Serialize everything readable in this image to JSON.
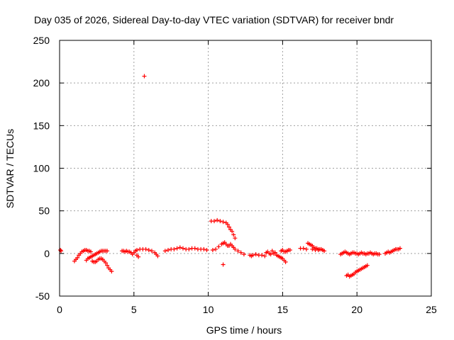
{
  "colors": {
    "series": "#ff0000",
    "grid": "#a0a0a0",
    "frame": "#000000",
    "background": "#ffffff"
  },
  "chart_data": {
    "type": "scatter",
    "title": "Day 035 of 2026, Sidereal Day-to-day VTEC variation (SDTVAR) for receiver bndr",
    "xlabel": "GPS time / hours",
    "ylabel": "SDTVAR / TECUs",
    "xlim": [
      0,
      25
    ],
    "ylim": [
      -50,
      250
    ],
    "xticks": [
      0,
      5,
      10,
      15,
      20,
      25
    ],
    "yticks": [
      -50,
      0,
      50,
      100,
      150,
      200,
      250
    ],
    "grid": true,
    "marker": "plus",
    "series": [
      {
        "name": "SDTVAR",
        "points": [
          [
            0.05,
            4
          ],
          [
            0.1,
            3
          ],
          [
            1.0,
            -9
          ],
          [
            1.1,
            -7
          ],
          [
            1.2,
            -5
          ],
          [
            1.3,
            -2
          ],
          [
            1.4,
            0
          ],
          [
            1.5,
            2
          ],
          [
            1.6,
            3
          ],
          [
            1.7,
            4
          ],
          [
            1.8,
            4
          ],
          [
            1.9,
            3
          ],
          [
            2.0,
            3
          ],
          [
            2.1,
            2
          ],
          [
            1.8,
            -8
          ],
          [
            1.9,
            -6
          ],
          [
            2.0,
            -5
          ],
          [
            2.1,
            -4
          ],
          [
            2.2,
            -3
          ],
          [
            2.3,
            -2
          ],
          [
            2.4,
            -1
          ],
          [
            2.5,
            0
          ],
          [
            2.6,
            1
          ],
          [
            2.7,
            2
          ],
          [
            2.8,
            3
          ],
          [
            2.9,
            3
          ],
          [
            3.0,
            3
          ],
          [
            3.1,
            3
          ],
          [
            3.2,
            3
          ],
          [
            2.2,
            -9
          ],
          [
            2.3,
            -10
          ],
          [
            2.4,
            -10
          ],
          [
            2.5,
            -9
          ],
          [
            2.6,
            -7
          ],
          [
            2.7,
            -6
          ],
          [
            2.8,
            -6
          ],
          [
            2.9,
            -7
          ],
          [
            3.0,
            -9
          ],
          [
            3.1,
            -11
          ],
          [
            3.2,
            -14
          ],
          [
            3.3,
            -17
          ],
          [
            3.4,
            -19
          ],
          [
            3.5,
            -21
          ],
          [
            4.2,
            3
          ],
          [
            4.3,
            3
          ],
          [
            4.4,
            2
          ],
          [
            4.5,
            3
          ],
          [
            4.6,
            2
          ],
          [
            4.7,
            2
          ],
          [
            4.8,
            1
          ],
          [
            4.9,
            -1
          ],
          [
            5.0,
            1
          ],
          [
            5.1,
            3
          ],
          [
            5.2,
            -2
          ],
          [
            5.3,
            -4
          ],
          [
            5.2,
            4
          ],
          [
            5.4,
            5
          ],
          [
            5.6,
            5
          ],
          [
            5.8,
            5
          ],
          [
            6.0,
            4
          ],
          [
            6.2,
            3
          ],
          [
            6.4,
            1
          ],
          [
            6.5,
            -1
          ],
          [
            6.6,
            -3
          ],
          [
            5.7,
            208
          ],
          [
            7.1,
            3
          ],
          [
            7.3,
            4
          ],
          [
            7.5,
            5
          ],
          [
            7.7,
            5
          ],
          [
            7.9,
            6
          ],
          [
            8.1,
            7
          ],
          [
            8.3,
            6
          ],
          [
            8.5,
            5
          ],
          [
            8.7,
            5
          ],
          [
            8.9,
            6
          ],
          [
            9.1,
            6
          ],
          [
            9.3,
            5
          ],
          [
            9.5,
            5
          ],
          [
            9.7,
            5
          ],
          [
            9.9,
            4
          ],
          [
            10.2,
            38
          ],
          [
            10.4,
            38
          ],
          [
            10.6,
            39
          ],
          [
            10.8,
            38
          ],
          [
            11.0,
            37
          ],
          [
            11.2,
            36
          ],
          [
            11.3,
            34
          ],
          [
            11.4,
            31
          ],
          [
            11.5,
            28
          ],
          [
            11.6,
            26
          ],
          [
            11.7,
            22
          ],
          [
            11.8,
            18
          ],
          [
            10.3,
            4
          ],
          [
            10.5,
            5
          ],
          [
            10.7,
            8
          ],
          [
            10.9,
            11
          ],
          [
            11.0,
            12
          ],
          [
            11.1,
            13
          ],
          [
            11.2,
            11
          ],
          [
            11.3,
            9
          ],
          [
            11.4,
            9
          ],
          [
            11.5,
            11
          ],
          [
            11.6,
            9
          ],
          [
            11.7,
            7
          ],
          [
            11.8,
            5
          ],
          [
            12.0,
            3
          ],
          [
            12.2,
            1
          ],
          [
            12.4,
            -1
          ],
          [
            11.0,
            -13
          ],
          [
            12.8,
            -2
          ],
          [
            12.9,
            -3
          ],
          [
            13.0,
            -2
          ],
          [
            13.2,
            -1
          ],
          [
            13.4,
            -2
          ],
          [
            13.6,
            -2
          ],
          [
            13.8,
            -3
          ],
          [
            13.9,
            1
          ],
          [
            14.0,
            2
          ],
          [
            14.1,
            0
          ],
          [
            14.2,
            -1
          ],
          [
            14.3,
            3
          ],
          [
            14.4,
            0
          ],
          [
            14.5,
            1
          ],
          [
            14.6,
            -2
          ],
          [
            14.7,
            -3
          ],
          [
            14.8,
            -4
          ],
          [
            14.9,
            -5
          ],
          [
            15.0,
            -6
          ],
          [
            15.1,
            -8
          ],
          [
            15.2,
            -10
          ],
          [
            14.9,
            3
          ],
          [
            15.0,
            4
          ],
          [
            15.1,
            2
          ],
          [
            15.2,
            2
          ],
          [
            15.3,
            3
          ],
          [
            15.4,
            4
          ],
          [
            15.5,
            4
          ],
          [
            16.2,
            6
          ],
          [
            16.4,
            6
          ],
          [
            16.6,
            5
          ],
          [
            16.7,
            12
          ],
          [
            16.8,
            11
          ],
          [
            16.9,
            10
          ],
          [
            17.0,
            9
          ],
          [
            17.1,
            7
          ],
          [
            17.2,
            6
          ],
          [
            17.3,
            6
          ],
          [
            17.4,
            5
          ],
          [
            17.5,
            5
          ],
          [
            17.6,
            5
          ],
          [
            17.7,
            4
          ],
          [
            17.8,
            3
          ],
          [
            17.0,
            5
          ],
          [
            17.2,
            4
          ],
          [
            17.4,
            4
          ],
          [
            18.9,
            -1
          ],
          [
            19.0,
            0
          ],
          [
            19.1,
            1
          ],
          [
            19.2,
            2
          ],
          [
            19.3,
            1
          ],
          [
            19.4,
            0
          ],
          [
            19.5,
            -1
          ],
          [
            19.6,
            0
          ],
          [
            19.7,
            1
          ],
          [
            19.8,
            1
          ],
          [
            19.9,
            0
          ],
          [
            20.0,
            0
          ],
          [
            20.1,
            -1
          ],
          [
            20.2,
            0
          ],
          [
            20.3,
            1
          ],
          [
            20.4,
            0
          ],
          [
            20.5,
            0
          ],
          [
            20.6,
            -1
          ],
          [
            20.7,
            0
          ],
          [
            20.8,
            0
          ],
          [
            20.9,
            1
          ],
          [
            21.0,
            0
          ],
          [
            21.1,
            -1
          ],
          [
            21.2,
            0
          ],
          [
            21.3,
            0
          ],
          [
            21.4,
            -1
          ],
          [
            21.5,
            -1
          ],
          [
            19.3,
            -26
          ],
          [
            19.4,
            -25
          ],
          [
            19.5,
            -27
          ],
          [
            19.6,
            -26
          ],
          [
            19.7,
            -25
          ],
          [
            19.8,
            -24
          ],
          [
            19.9,
            -22
          ],
          [
            20.0,
            -21
          ],
          [
            20.1,
            -20
          ],
          [
            20.2,
            -19
          ],
          [
            20.3,
            -18
          ],
          [
            20.4,
            -17
          ],
          [
            20.5,
            -16
          ],
          [
            20.6,
            -15
          ],
          [
            20.7,
            -14
          ],
          [
            21.9,
            0
          ],
          [
            22.0,
            1
          ],
          [
            22.1,
            2
          ],
          [
            22.2,
            1
          ],
          [
            22.3,
            2
          ],
          [
            22.4,
            3
          ],
          [
            22.5,
            4
          ],
          [
            22.6,
            5
          ],
          [
            22.7,
            5
          ],
          [
            22.8,
            5
          ],
          [
            22.9,
            6
          ]
        ]
      }
    ]
  }
}
